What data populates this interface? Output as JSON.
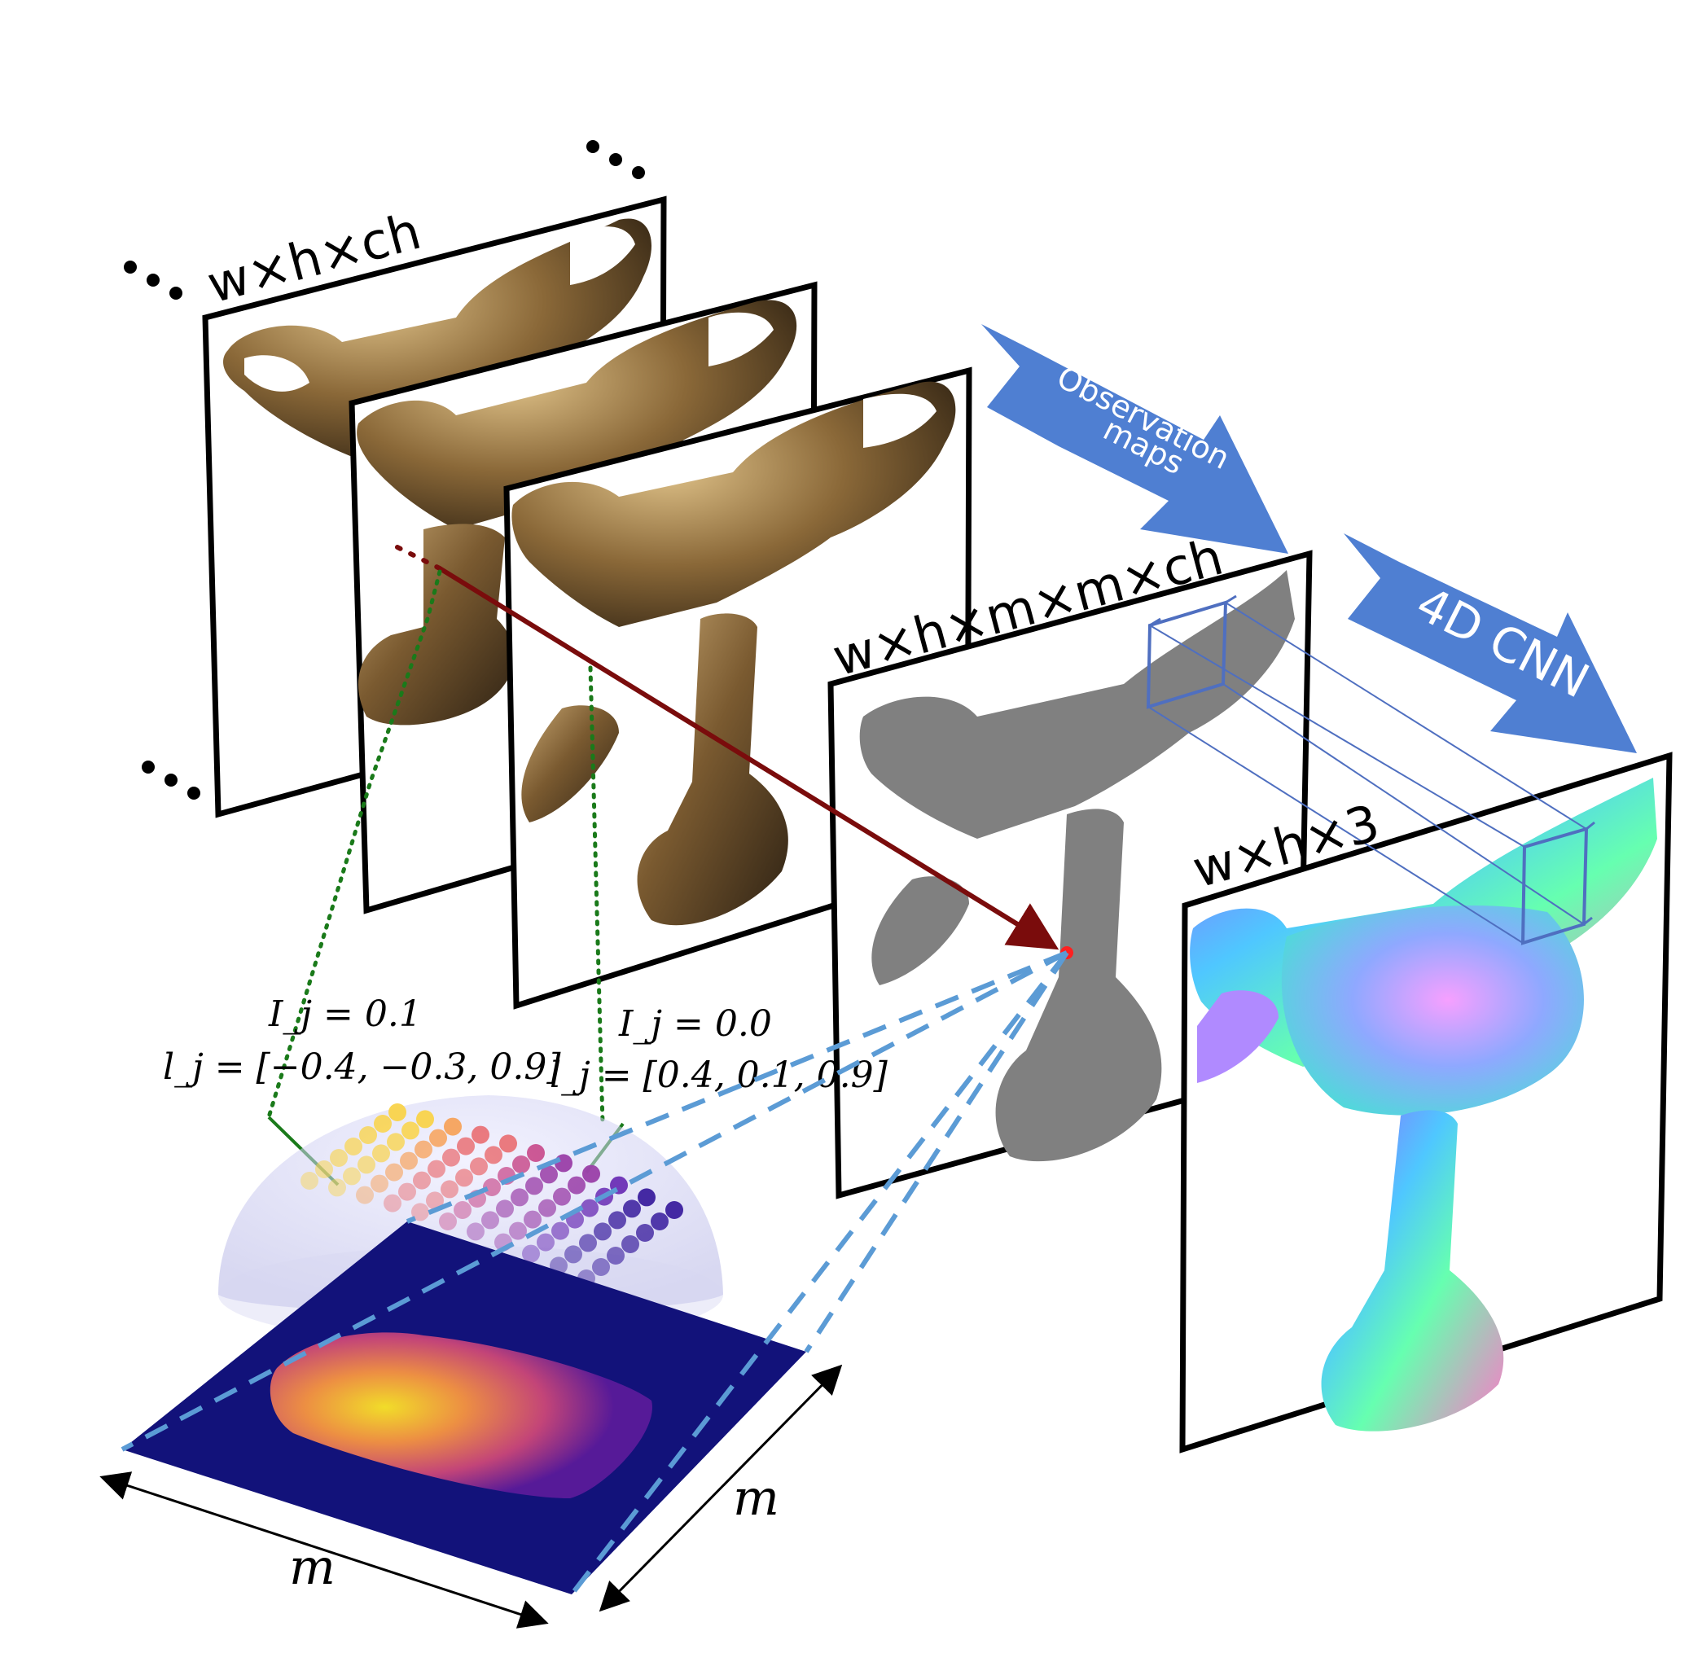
{
  "labels": {
    "input_dim": "w×h×ch",
    "obs_dim": "w×h×m×m×ch",
    "out_dim": "w×h×3",
    "m_bottom": "m",
    "m_right": "m"
  },
  "arrows": {
    "observation_line1": "Observation",
    "observation_line2": "maps",
    "cnn": "4D CNN"
  },
  "annotations": {
    "left": {
      "intensity": "I_j = 0.1",
      "light": "l_j = [−0.4, −0.3, 0.9]"
    },
    "right": {
      "intensity": "I_j = 0.0",
      "light": "l_j = [0.4, 0.1, 0.9]"
    }
  },
  "colors": {
    "arrow_blue": "#4f7fd2",
    "ray_red": "#7a0c0c",
    "dashed_blue": "#5b9bd5",
    "green": "#1a7a1a",
    "map_bg": "#12127a",
    "gray_silhouette": "#808080"
  }
}
